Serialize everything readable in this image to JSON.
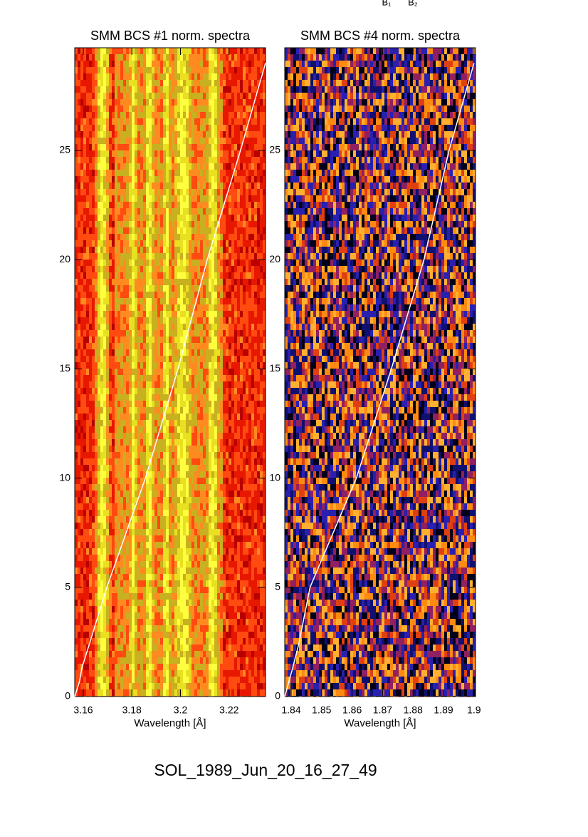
{
  "top_labels": [
    "B₁",
    "B₂"
  ],
  "footer": "SOL_1989_Jun_20_16_27_49",
  "chart_data": [
    {
      "type": "spectrogram",
      "title": "SMM BCS #1 norm. spectra",
      "x_label": "Wavelength [Å]",
      "xlim": [
        3.1565,
        3.235
      ],
      "xticks": [
        3.16,
        3.18,
        3.2,
        3.22
      ],
      "ylim": [
        0,
        29.7
      ],
      "yticks": [
        0,
        5,
        10,
        15,
        20,
        25
      ],
      "series": [
        {
          "color": "#ffffff",
          "x": [
            3.1565,
            3.1585,
            3.1594,
            3.1625,
            3.1697,
            3.1856,
            3.199,
            3.211,
            3.2247,
            3.235
          ],
          "y": [
            0,
            0.7,
            1.3,
            2.4,
            5,
            10,
            15,
            20,
            25,
            29
          ]
        }
      ]
    },
    {
      "type": "spectrogram",
      "title": "SMM BCS #4 norm. spectra",
      "x_label": "Wavelength [Å]",
      "xlim": [
        1.8379,
        1.9005
      ],
      "xticks": [
        1.84,
        1.85,
        1.86,
        1.87,
        1.88,
        1.89,
        1.9
      ],
      "ylim": [
        0,
        29.7
      ],
      "yticks": [
        0,
        5,
        10,
        15,
        20,
        25
      ],
      "series": [
        {
          "color": "#ffffff",
          "x": [
            1.8379,
            1.8393,
            1.8405,
            1.8425,
            1.8462,
            1.8614,
            1.8729,
            1.8836,
            1.8918,
            1.9
          ],
          "y": [
            0,
            0.7,
            1.3,
            2.4,
            5,
            10,
            15,
            20,
            25,
            29
          ]
        }
      ]
    }
  ]
}
